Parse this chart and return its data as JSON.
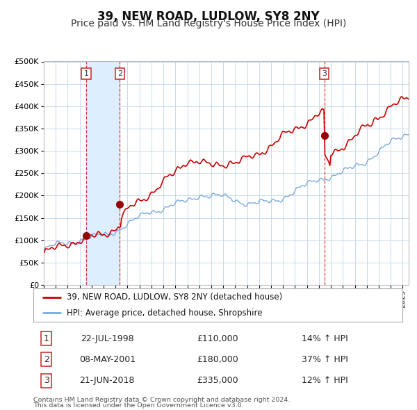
{
  "title": "39, NEW ROAD, LUDLOW, SY8 2NY",
  "subtitle": "Price paid vs. HM Land Registry's House Price Index (HPI)",
  "xlim": [
    1995.0,
    2025.5
  ],
  "ylim": [
    0,
    500000
  ],
  "yticks": [
    0,
    50000,
    100000,
    150000,
    200000,
    250000,
    300000,
    350000,
    400000,
    450000,
    500000
  ],
  "transactions": [
    {
      "num": 1,
      "date_str": "22-JUL-1998",
      "year": 1998.54,
      "price": 110000,
      "pct": "14%",
      "label": "1"
    },
    {
      "num": 2,
      "date_str": "08-MAY-2001",
      "year": 2001.35,
      "price": 180000,
      "pct": "37%",
      "label": "2"
    },
    {
      "num": 3,
      "date_str": "21-JUN-2018",
      "year": 2018.46,
      "price": 335000,
      "pct": "12%",
      "label": "3"
    }
  ],
  "shade_x0": 1998.54,
  "shade_x1": 2001.35,
  "red_line_color": "#cc0000",
  "blue_line_color": "#7aaadd",
  "shade_color": "#ddeeff",
  "dot_color": "#990000",
  "grid_color": "#c8daea",
  "background_color": "#ffffff",
  "legend_label_red": "39, NEW ROAD, LUDLOW, SY8 2NY (detached house)",
  "legend_label_blue": "HPI: Average price, detached house, Shropshire",
  "footnote1": "Contains HM Land Registry data © Crown copyright and database right 2024.",
  "footnote2": "This data is licensed under the Open Government Licence v3.0.",
  "title_fontsize": 12,
  "subtitle_fontsize": 10
}
